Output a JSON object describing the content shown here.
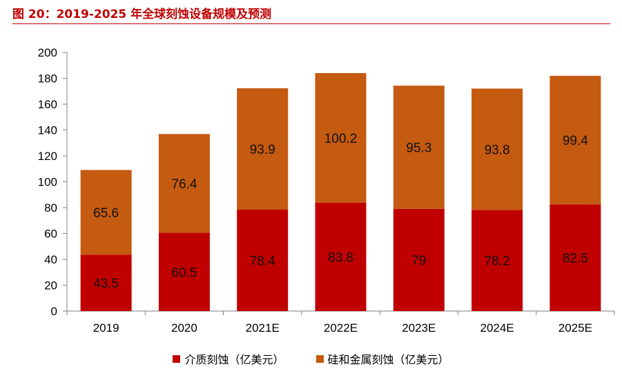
{
  "figure": {
    "title": "图 20：2019-2025 年全球刻蚀设备规模及预测"
  },
  "colors": {
    "title": "#c00000",
    "dielectric": "#c00000",
    "silicon_metal": "#c55a11"
  },
  "chart_data": {
    "type": "bar",
    "stacked": true,
    "categories": [
      "2019",
      "2020",
      "2021E",
      "2022E",
      "2023E",
      "2024E",
      "2025E"
    ],
    "series": [
      {
        "name": "介质刻蚀（亿美元）",
        "values": [
          43.5,
          60.5,
          78.4,
          83.8,
          79,
          78.2,
          82.5
        ]
      },
      {
        "name": "硅和金属刻蚀（亿美元）",
        "values": [
          65.6,
          76.4,
          93.9,
          100.2,
          95.3,
          93.8,
          99.4
        ]
      }
    ],
    "ylim": [
      0,
      200
    ],
    "yticks": [
      0,
      20,
      40,
      60,
      80,
      100,
      120,
      140,
      160,
      180,
      200
    ],
    "grid": false,
    "legend_position": "bottom"
  }
}
